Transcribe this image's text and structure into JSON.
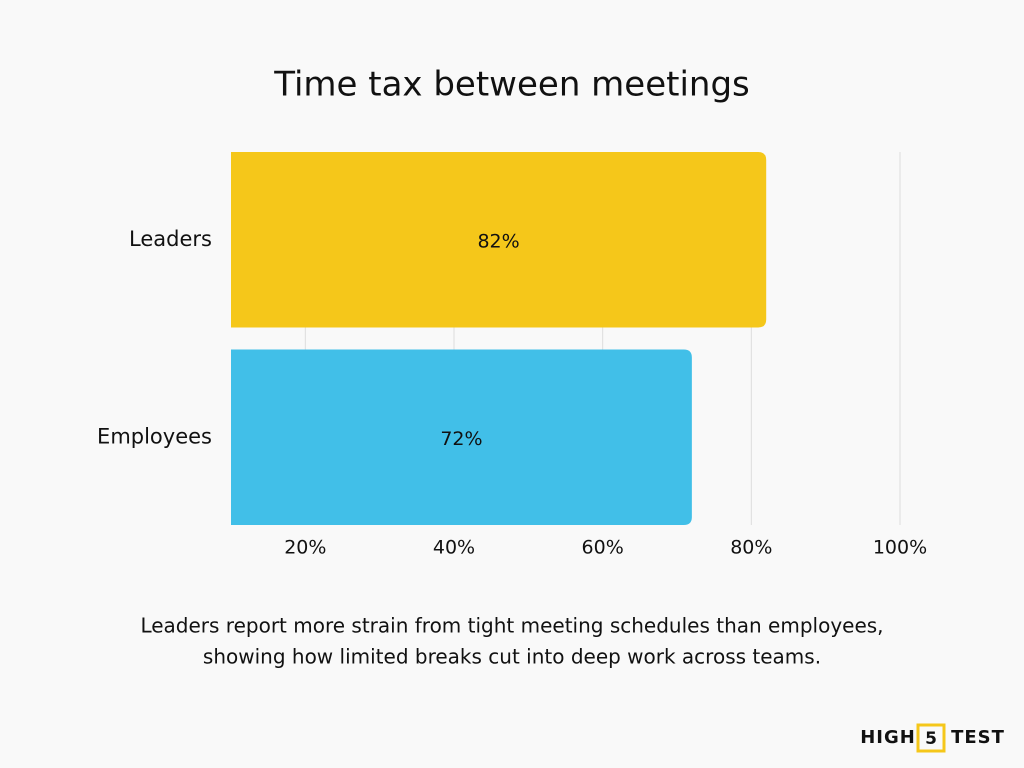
{
  "chart_data": {
    "type": "hbar",
    "title": "Time tax between meetings",
    "categories": [
      "Leaders",
      "Employees"
    ],
    "values": [
      82,
      72
    ],
    "value_labels": [
      "82%",
      "72%"
    ],
    "colors": [
      "#f5c71a",
      "#41bfe8"
    ],
    "xlim": [
      10,
      100
    ],
    "xticks": [
      {
        "value": 20,
        "label": "20%"
      },
      {
        "value": 40,
        "label": "40%"
      },
      {
        "value": 60,
        "label": "60%"
      },
      {
        "value": 80,
        "label": "80%"
      },
      {
        "value": 100,
        "label": "100%"
      }
    ],
    "grid": true,
    "annotation": [
      "Leaders report more strain from tight meeting schedules than employees,",
      "showing how limited breaks cut into deep work across teams."
    ]
  },
  "brand": {
    "left": "HIGH",
    "middle": "5",
    "right": "TEST"
  }
}
